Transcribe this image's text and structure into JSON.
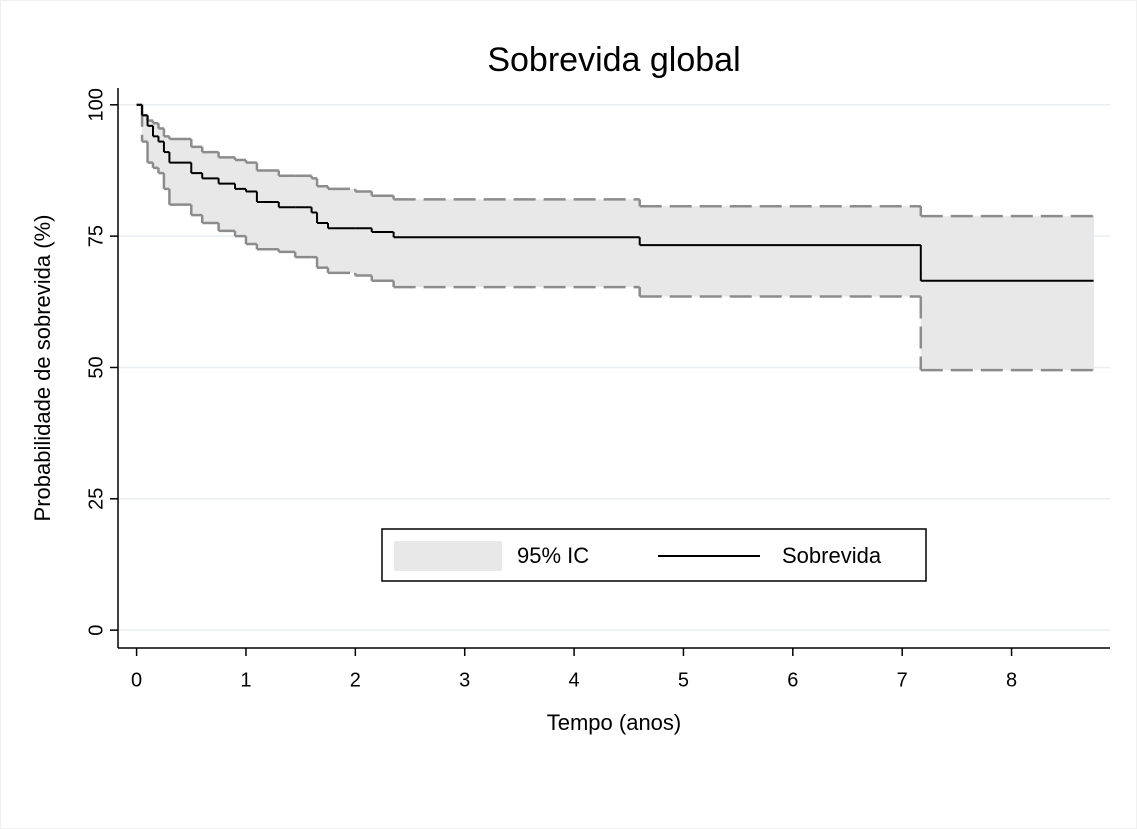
{
  "chart_data": {
    "type": "step",
    "title": "Sobrevida global",
    "x_label": "Tempo (anos)",
    "y_label": "Probabilidade de sobrevida (%)",
    "x": [
      0,
      0.05,
      0.1,
      0.15,
      0.2,
      0.25,
      0.3,
      0.5,
      0.6,
      0.75,
      0.9,
      1.0,
      1.1,
      1.3,
      1.45,
      1.6,
      1.65,
      1.75,
      2.0,
      2.15,
      2.35,
      4.6,
      7.17,
      8.75
    ],
    "series": [
      {
        "name": "Sobrevida",
        "color": "#000000",
        "values": [
          100,
          98,
          96,
          94,
          93,
          91,
          89,
          87,
          86,
          85,
          84,
          83.5,
          81.5,
          80.5,
          80.5,
          79.5,
          77.5,
          76.5,
          76.5,
          75.8,
          74.8,
          73.3,
          66.5,
          66.5
        ]
      }
    ],
    "band": {
      "name": "95% IC",
      "color": "#e8e8e8",
      "line_color": "#8c8c8c",
      "lower": [
        100,
        93,
        89,
        88,
        87,
        84,
        81,
        79,
        77.5,
        76,
        75,
        73.5,
        72.5,
        72,
        71,
        71,
        69,
        68,
        67.5,
        66.5,
        65.3,
        63.5,
        49.5,
        49.5
      ],
      "upper": [
        100,
        98,
        97,
        96.5,
        95.5,
        94,
        93.5,
        92,
        91,
        90,
        89.5,
        89,
        87.5,
        86.5,
        86.5,
        86,
        84.5,
        84,
        83.5,
        82.7,
        82,
        80.7,
        78.8,
        78.8
      ]
    },
    "xlim": [
      -0.17,
      8.9
    ],
    "xticks": [
      0,
      1,
      2,
      3,
      4,
      5,
      6,
      7,
      8
    ],
    "ylim": [
      -3.4,
      103.2
    ],
    "yticks": [
      0,
      25,
      50,
      75,
      100
    ],
    "grid": true,
    "legend_position": "bottom"
  }
}
